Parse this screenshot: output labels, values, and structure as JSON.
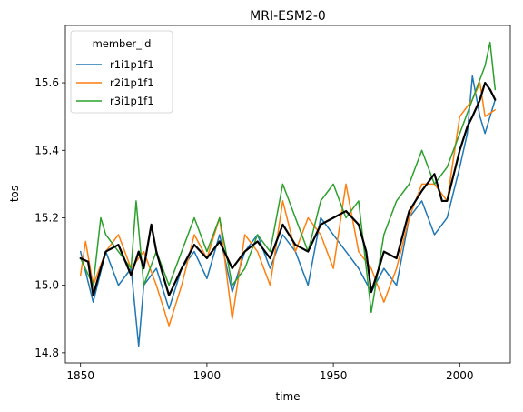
{
  "chart_data": {
    "type": "line",
    "title": "MRI-ESM2-0",
    "xlabel": "time",
    "ylabel": "tos",
    "xlim": [
      1844,
      2020
    ],
    "ylim": [
      14.77,
      15.77
    ],
    "xticks": [
      1850,
      1900,
      1950,
      2000
    ],
    "yticks": [
      14.8,
      15.0,
      15.2,
      15.4,
      15.6
    ],
    "legend": {
      "title": "member_id",
      "placement": "top-left"
    },
    "series": [
      {
        "name": "r1i1p1f1",
        "color": "#1f77b4",
        "width": 1.5,
        "x": [
          1850,
          1855,
          1860,
          1865,
          1870,
          1873,
          1875,
          1880,
          1885,
          1890,
          1895,
          1900,
          1905,
          1910,
          1915,
          1920,
          1925,
          1930,
          1935,
          1940,
          1945,
          1950,
          1955,
          1960,
          1965,
          1970,
          1975,
          1980,
          1985,
          1990,
          1995,
          2000,
          2003,
          2005,
          2008,
          2010,
          2014
        ],
        "values": [
          15.1,
          14.95,
          15.1,
          15.0,
          15.05,
          14.82,
          15.0,
          15.05,
          14.93,
          15.05,
          15.1,
          15.02,
          15.15,
          14.98,
          15.1,
          15.15,
          15.05,
          15.15,
          15.1,
          15.0,
          15.2,
          15.15,
          15.1,
          15.05,
          14.98,
          15.05,
          15.0,
          15.2,
          15.25,
          15.15,
          15.2,
          15.35,
          15.45,
          15.62,
          15.5,
          15.45,
          15.55
        ]
      },
      {
        "name": "r2i1p1f1",
        "color": "#ff7f0e",
        "width": 1.5,
        "x": [
          1850,
          1852,
          1855,
          1860,
          1865,
          1870,
          1875,
          1880,
          1885,
          1890,
          1895,
          1900,
          1905,
          1910,
          1915,
          1920,
          1925,
          1930,
          1935,
          1940,
          1945,
          1950,
          1955,
          1960,
          1965,
          1970,
          1975,
          1980,
          1985,
          1990,
          1995,
          2000,
          2005,
          2008,
          2010,
          2014
        ],
        "values": [
          15.03,
          15.13,
          15.0,
          15.1,
          15.15,
          15.05,
          15.1,
          15.0,
          14.88,
          15.0,
          15.15,
          15.08,
          15.2,
          14.9,
          15.15,
          15.1,
          15.0,
          15.25,
          15.1,
          15.2,
          15.15,
          15.05,
          15.3,
          15.1,
          15.05,
          14.95,
          15.05,
          15.2,
          15.3,
          15.3,
          15.25,
          15.5,
          15.55,
          15.6,
          15.5,
          15.52
        ]
      },
      {
        "name": "r3i1p1f1",
        "color": "#2ca02c",
        "width": 1.5,
        "x": [
          1850,
          1855,
          1858,
          1860,
          1865,
          1870,
          1872,
          1875,
          1880,
          1885,
          1890,
          1895,
          1900,
          1905,
          1910,
          1915,
          1920,
          1925,
          1930,
          1935,
          1940,
          1945,
          1950,
          1955,
          1960,
          1965,
          1970,
          1975,
          1980,
          1985,
          1990,
          1995,
          2000,
          2005,
          2010,
          2012,
          2014
        ],
        "values": [
          15.08,
          15.0,
          15.2,
          15.15,
          15.1,
          15.05,
          15.25,
          15.0,
          15.1,
          15.0,
          15.1,
          15.2,
          15.1,
          15.2,
          15.0,
          15.05,
          15.15,
          15.1,
          15.3,
          15.2,
          15.1,
          15.25,
          15.3,
          15.2,
          15.25,
          14.92,
          15.15,
          15.25,
          15.3,
          15.4,
          15.3,
          15.35,
          15.45,
          15.55,
          15.65,
          15.72,
          15.58
        ]
      },
      {
        "name": "",
        "color": "#000000",
        "width": 2.2,
        "x": [
          1850,
          1853,
          1855,
          1858,
          1860,
          1865,
          1870,
          1873,
          1875,
          1878,
          1880,
          1883,
          1885,
          1890,
          1895,
          1900,
          1905,
          1910,
          1915,
          1920,
          1925,
          1930,
          1935,
          1940,
          1945,
          1950,
          1955,
          1960,
          1963,
          1965,
          1968,
          1970,
          1975,
          1980,
          1985,
          1990,
          1993,
          1995,
          2000,
          2003,
          2005,
          2008,
          2010,
          2012,
          2014
        ],
        "values": [
          15.08,
          15.07,
          14.97,
          15.05,
          15.1,
          15.12,
          15.03,
          15.1,
          15.05,
          15.18,
          15.1,
          15.02,
          14.97,
          15.05,
          15.12,
          15.08,
          15.13,
          15.05,
          15.1,
          15.13,
          15.08,
          15.18,
          15.12,
          15.1,
          15.18,
          15.2,
          15.22,
          15.18,
          15.1,
          14.98,
          15.05,
          15.1,
          15.08,
          15.22,
          15.28,
          15.33,
          15.25,
          15.25,
          15.4,
          15.47,
          15.5,
          15.55,
          15.6,
          15.58,
          15.55
        ]
      }
    ]
  }
}
